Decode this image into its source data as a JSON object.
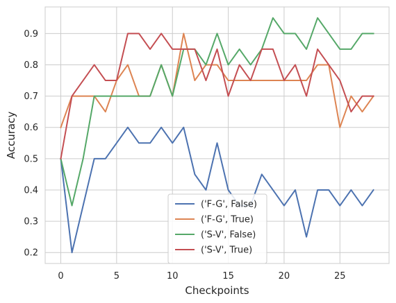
{
  "chart_data": {
    "type": "line",
    "title": "",
    "xlabel": "Checkpoints",
    "ylabel": "Accuracy",
    "xlim": [
      -1.4,
      29.4
    ],
    "ylim": [
      0.165,
      0.985
    ],
    "xticks": [
      0,
      5,
      10,
      15,
      20,
      25
    ],
    "yticks": [
      0.2,
      0.3,
      0.4,
      0.5,
      0.6,
      0.7,
      0.8,
      0.9
    ],
    "grid": true,
    "legend_position": "lower-center",
    "x": [
      0,
      1,
      2,
      3,
      4,
      5,
      6,
      7,
      8,
      9,
      10,
      11,
      12,
      13,
      14,
      15,
      16,
      17,
      18,
      19,
      20,
      21,
      22,
      23,
      24,
      25,
      26,
      27,
      28
    ],
    "series": [
      {
        "name": "('F-G', False)",
        "color": "#4c72b0",
        "values": [
          0.5,
          0.2,
          0.35,
          0.5,
          0.5,
          0.55,
          0.6,
          0.55,
          0.55,
          0.6,
          0.55,
          0.6,
          0.45,
          0.4,
          0.55,
          0.4,
          0.35,
          0.35,
          0.45,
          0.4,
          0.35,
          0.4,
          0.25,
          0.4,
          0.4,
          0.35,
          0.4,
          0.35,
          0.4
        ]
      },
      {
        "name": "('F-G', True)",
        "color": "#dd8452",
        "values": [
          0.6,
          0.7,
          0.7,
          0.7,
          0.65,
          0.75,
          0.8,
          0.7,
          0.7,
          0.8,
          0.7,
          0.9,
          0.75,
          0.8,
          0.8,
          0.75,
          0.75,
          0.75,
          0.75,
          0.75,
          0.75,
          0.75,
          0.75,
          0.8,
          0.8,
          0.6,
          0.7,
          0.65,
          0.7
        ]
      },
      {
        "name": "('S-V', False)",
        "color": "#55a868",
        "values": [
          0.5,
          0.35,
          0.5,
          0.7,
          0.7,
          0.7,
          0.7,
          0.7,
          0.7,
          0.8,
          0.7,
          0.85,
          0.85,
          0.8,
          0.9,
          0.8,
          0.85,
          0.8,
          0.85,
          0.95,
          0.9,
          0.9,
          0.85,
          0.95,
          0.9,
          0.85,
          0.85,
          0.9,
          0.9
        ]
      },
      {
        "name": "('S-V', True)",
        "color": "#c44e52",
        "values": [
          0.5,
          0.7,
          0.75,
          0.8,
          0.75,
          0.75,
          0.9,
          0.9,
          0.85,
          0.9,
          0.85,
          0.85,
          0.85,
          0.75,
          0.85,
          0.7,
          0.8,
          0.75,
          0.85,
          0.85,
          0.75,
          0.8,
          0.7,
          0.85,
          0.8,
          0.75,
          0.65,
          0.7,
          0.7
        ]
      }
    ]
  }
}
